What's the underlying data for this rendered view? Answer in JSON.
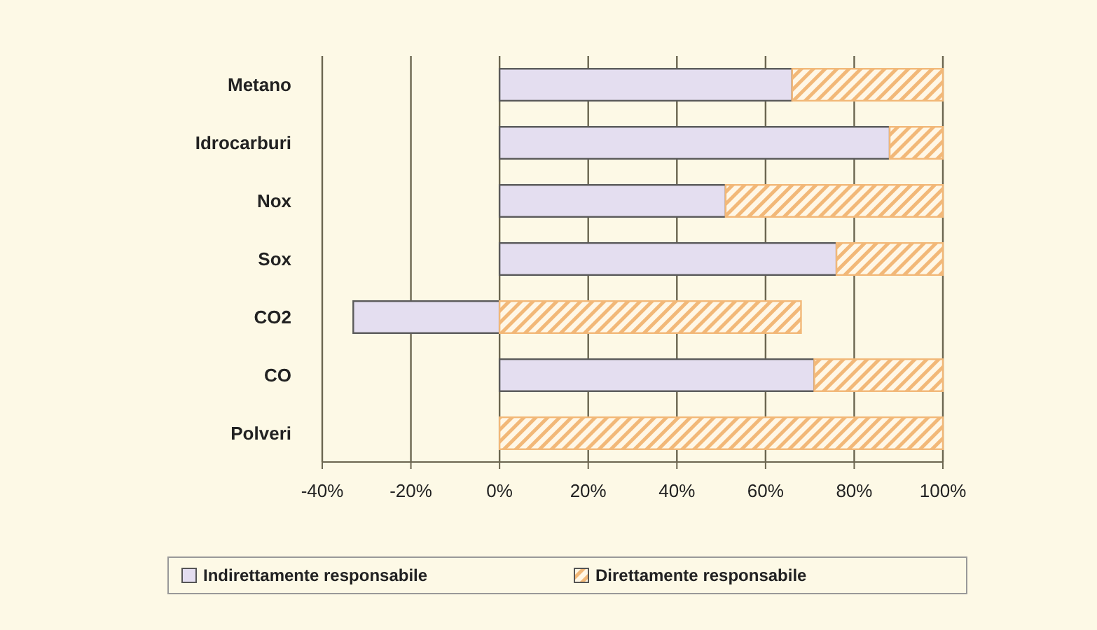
{
  "chart_data": {
    "type": "bar",
    "orientation": "horizontal",
    "stacked": true,
    "categories": [
      "Metano",
      "Idrocarburi",
      "Nox",
      "Sox",
      "CO2",
      "CO",
      "Polveri"
    ],
    "series": [
      {
        "name": "Indirettamente responsabile",
        "color": "#e4def0",
        "values": [
          66,
          88,
          51,
          76,
          -33,
          71,
          0
        ]
      },
      {
        "name": "Direttamente responsabile",
        "color": "#f2b878",
        "values": [
          34,
          12,
          49,
          24,
          68,
          29,
          100
        ]
      }
    ],
    "xlim": [
      -40,
      100
    ],
    "xticks": [
      {
        "value": -40,
        "label": "-40%"
      },
      {
        "value": -20,
        "label": "-20%"
      },
      {
        "value": 0,
        "label": "0%"
      },
      {
        "value": 20,
        "label": "20%"
      },
      {
        "value": 40,
        "label": "40%"
      },
      {
        "value": 60,
        "label": "60%"
      },
      {
        "value": 80,
        "label": "80%"
      },
      {
        "value": 100,
        "label": "100%"
      }
    ],
    "grid": "x",
    "legend": "bottom"
  }
}
